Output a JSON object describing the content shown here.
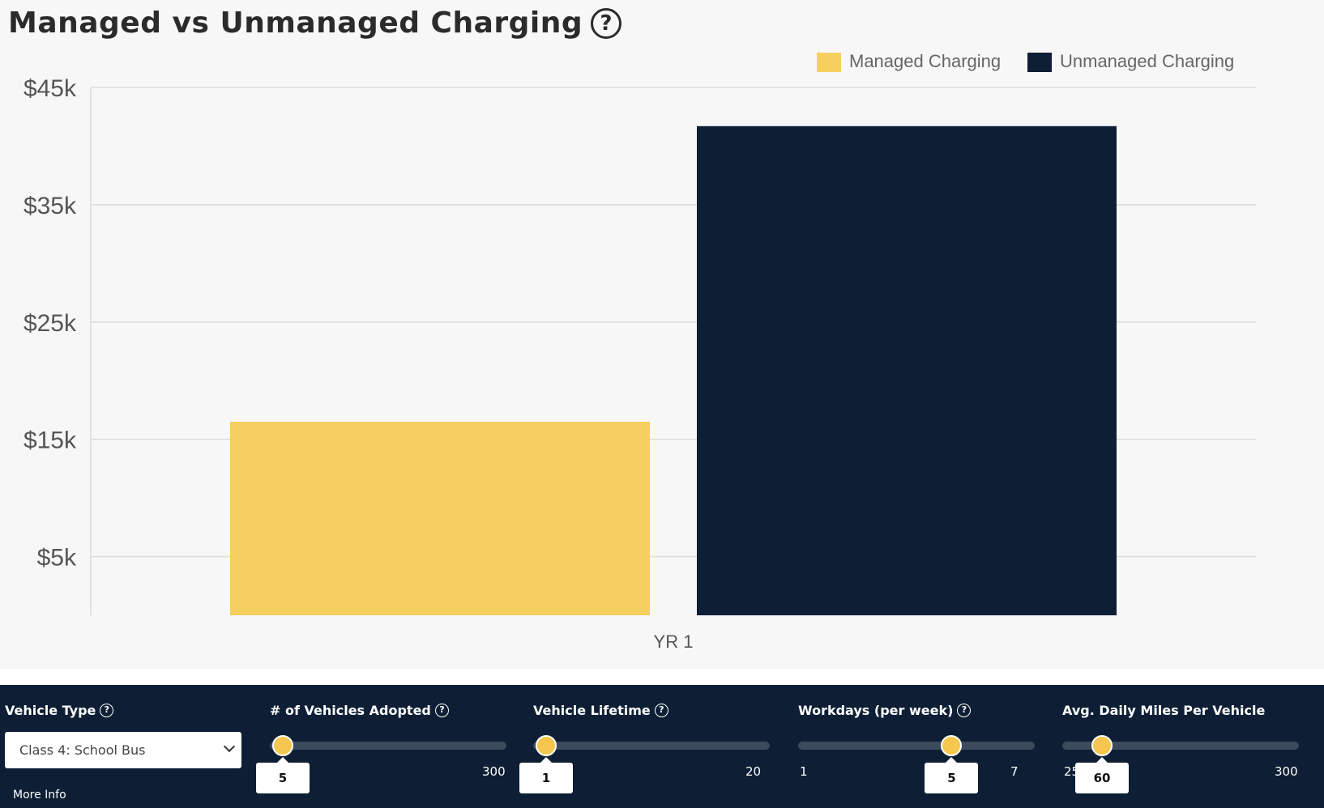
{
  "title": "Managed vs Unmanaged Charging",
  "title_help_icon": "question-circle-icon",
  "chart_data": {
    "type": "bar",
    "categories": [
      "YR 1"
    ],
    "series": [
      {
        "name": "Managed Charging",
        "values": [
          16500
        ],
        "color": "#f5d060"
      },
      {
        "name": "Unmanaged Charging",
        "values": [
          41700
        ],
        "color": "#0e1f35"
      }
    ],
    "yticks": [
      "$5k",
      "$15k",
      "$25k",
      "$35k",
      "$45k"
    ],
    "ytick_values": [
      5000,
      15000,
      25000,
      35000,
      45000
    ],
    "ylim": [
      0,
      45000
    ],
    "legend": "top-right",
    "grid": true
  },
  "controls": {
    "vehicle_type": {
      "label": "Vehicle Type",
      "value": "Class 4: School Bus",
      "more_info": "More Info"
    },
    "vehicles_adopted": {
      "label": "# of Vehicles Adopted",
      "value": "5",
      "min": "",
      "max": "300",
      "fraction": 0.0
    },
    "vehicle_lifetime": {
      "label": "Vehicle Lifetime",
      "value": "1",
      "min": "",
      "max": "20",
      "fraction": 0.0
    },
    "workdays": {
      "label": "Workdays (per week)",
      "value": "5",
      "min": "1",
      "max": "7",
      "fraction": 0.667
    },
    "daily_miles": {
      "label": "Avg. Daily Miles Per Vehicle",
      "value": "60",
      "min": "25",
      "max": "300",
      "fraction": 0.127
    }
  }
}
